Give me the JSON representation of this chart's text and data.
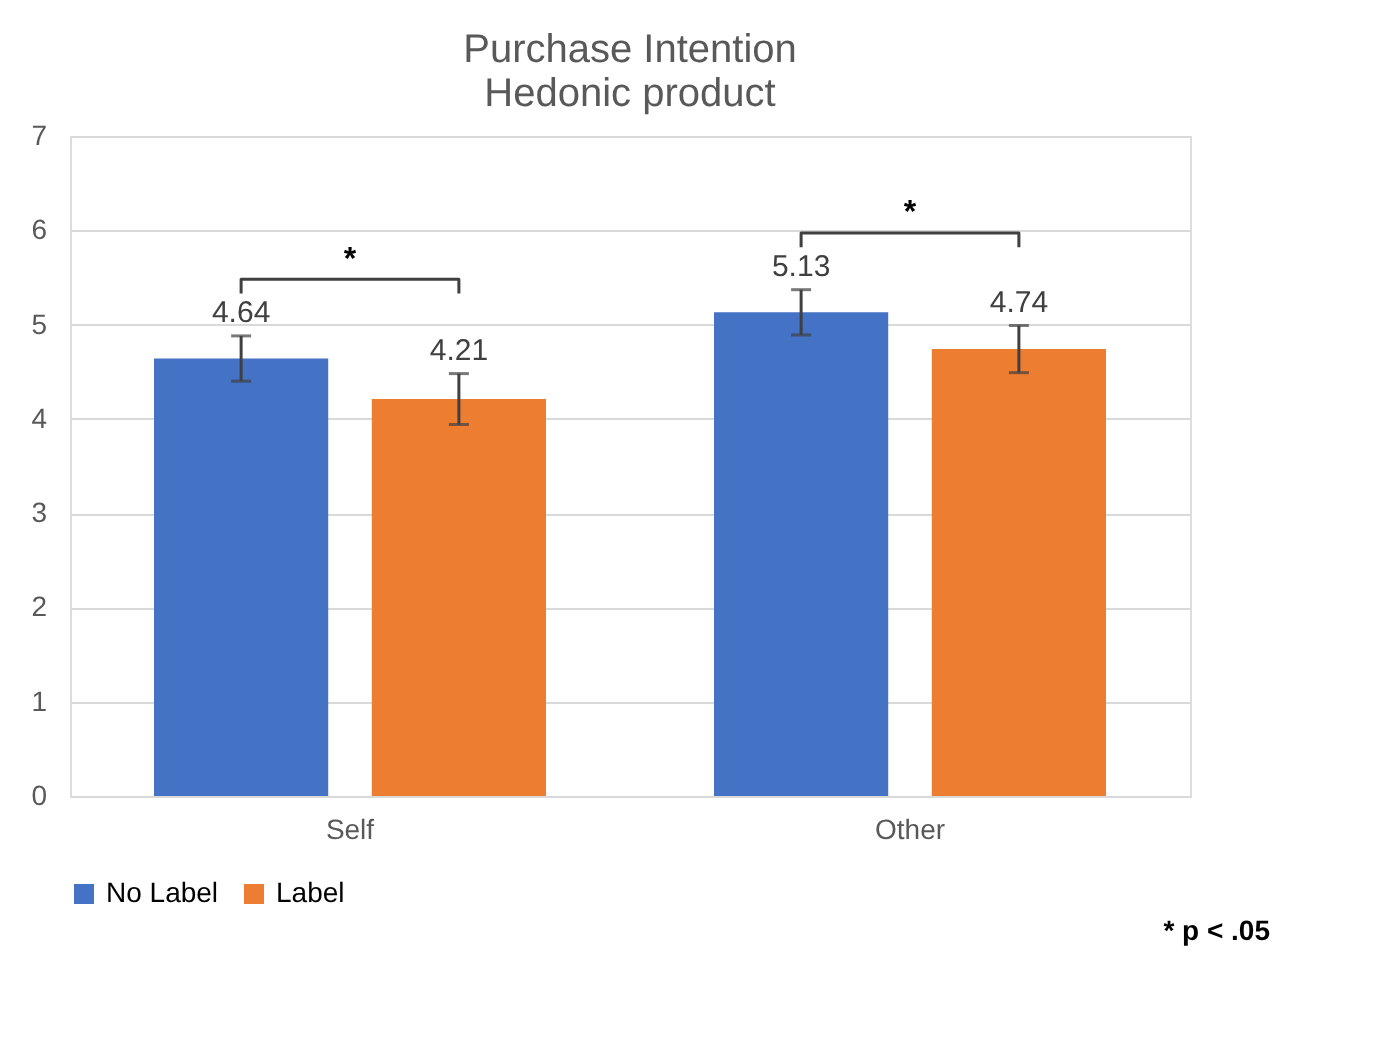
{
  "chart_data": {
    "type": "bar",
    "title": "Purchase Intention\nHedonic product",
    "categories": [
      "Self",
      "Other"
    ],
    "series": [
      {
        "name": "No Label",
        "color": "#4472c4",
        "values": [
          4.64,
          5.13
        ],
        "errors": [
          0.24,
          0.24
        ]
      },
      {
        "name": "Label",
        "color": "#ed7d31",
        "values": [
          4.21,
          4.74
        ],
        "errors": [
          0.27,
          0.25
        ]
      }
    ],
    "ylim": [
      0,
      7
    ],
    "yticks": [
      0,
      1,
      2,
      3,
      4,
      5,
      6,
      7
    ],
    "grid": "y",
    "legend": "bottom",
    "data_labels": true,
    "annotations": [
      "*",
      "*",
      "* p < .05"
    ]
  }
}
